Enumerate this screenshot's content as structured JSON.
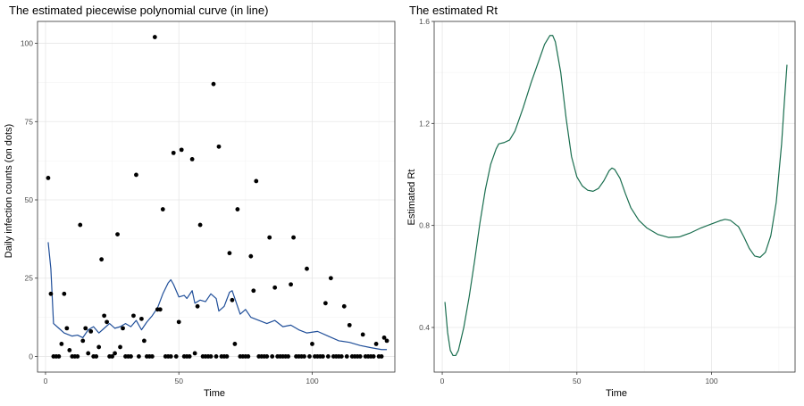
{
  "chart_data": [
    {
      "type": "scatter",
      "title": "The estimated piecewise polynomial curve (in line)",
      "xlabel": "Time",
      "ylabel": "Daily infection counts (on dots)",
      "xlim": [
        -3,
        131
      ],
      "ylim": [
        -5,
        107
      ],
      "xticks": [
        0,
        50,
        100
      ],
      "yticks": [
        0,
        25,
        50,
        75,
        100
      ],
      "grid": true,
      "points_color": "#000000",
      "line_color": "#1f4e99",
      "points": [
        [
          1,
          57
        ],
        [
          2,
          20
        ],
        [
          3,
          0
        ],
        [
          4,
          0
        ],
        [
          5,
          0
        ],
        [
          6,
          4
        ],
        [
          7,
          20
        ],
        [
          8,
          9
        ],
        [
          9,
          2
        ],
        [
          10,
          0
        ],
        [
          11,
          0
        ],
        [
          12,
          0
        ],
        [
          13,
          42
        ],
        [
          14,
          5
        ],
        [
          15,
          9
        ],
        [
          16,
          1
        ],
        [
          17,
          8
        ],
        [
          18,
          0
        ],
        [
          19,
          0
        ],
        [
          20,
          3
        ],
        [
          21,
          31
        ],
        [
          22,
          13
        ],
        [
          23,
          11
        ],
        [
          24,
          0
        ],
        [
          25,
          0
        ],
        [
          26,
          1
        ],
        [
          27,
          39
        ],
        [
          28,
          3
        ],
        [
          29,
          9
        ],
        [
          30,
          0
        ],
        [
          31,
          0
        ],
        [
          32,
          0
        ],
        [
          33,
          13
        ],
        [
          34,
          58
        ],
        [
          35,
          0
        ],
        [
          36,
          12
        ],
        [
          37,
          5
        ],
        [
          38,
          0
        ],
        [
          39,
          0
        ],
        [
          40,
          0
        ],
        [
          41,
          102
        ],
        [
          42,
          15
        ],
        [
          43,
          15
        ],
        [
          44,
          47
        ],
        [
          45,
          0
        ],
        [
          46,
          0
        ],
        [
          47,
          0
        ],
        [
          48,
          65
        ],
        [
          49,
          0
        ],
        [
          50,
          11
        ],
        [
          51,
          66
        ],
        [
          52,
          0
        ],
        [
          53,
          0
        ],
        [
          54,
          0
        ],
        [
          55,
          63
        ],
        [
          56,
          1
        ],
        [
          57,
          16
        ],
        [
          58,
          42
        ],
        [
          59,
          0
        ],
        [
          60,
          0
        ],
        [
          61,
          0
        ],
        [
          62,
          0
        ],
        [
          63,
          87
        ],
        [
          64,
          0
        ],
        [
          65,
          67
        ],
        [
          66,
          0
        ],
        [
          67,
          0
        ],
        [
          68,
          0
        ],
        [
          69,
          33
        ],
        [
          70,
          18
        ],
        [
          71,
          4
        ],
        [
          72,
          47
        ],
        [
          73,
          0
        ],
        [
          74,
          0
        ],
        [
          75,
          0
        ],
        [
          76,
          0
        ],
        [
          77,
          32
        ],
        [
          78,
          21
        ],
        [
          79,
          56
        ],
        [
          80,
          0
        ],
        [
          81,
          0
        ],
        [
          82,
          0
        ],
        [
          83,
          0
        ],
        [
          84,
          38
        ],
        [
          85,
          0
        ],
        [
          86,
          22
        ],
        [
          87,
          0
        ],
        [
          88,
          0
        ],
        [
          89,
          0
        ],
        [
          90,
          0
        ],
        [
          91,
          0
        ],
        [
          92,
          23
        ],
        [
          93,
          38
        ],
        [
          94,
          0
        ],
        [
          95,
          0
        ],
        [
          96,
          0
        ],
        [
          97,
          0
        ],
        [
          98,
          28
        ],
        [
          99,
          0
        ],
        [
          100,
          4
        ],
        [
          101,
          0
        ],
        [
          102,
          0
        ],
        [
          103,
          0
        ],
        [
          104,
          0
        ],
        [
          105,
          17
        ],
        [
          106,
          0
        ],
        [
          107,
          25
        ],
        [
          108,
          0
        ],
        [
          109,
          0
        ],
        [
          110,
          0
        ],
        [
          111,
          0
        ],
        [
          112,
          16
        ],
        [
          113,
          0
        ],
        [
          114,
          10
        ],
        [
          115,
          0
        ],
        [
          116,
          0
        ],
        [
          117,
          0
        ],
        [
          118,
          0
        ],
        [
          119,
          7
        ],
        [
          120,
          0
        ],
        [
          121,
          0
        ],
        [
          122,
          0
        ],
        [
          123,
          0
        ],
        [
          124,
          4
        ],
        [
          125,
          0
        ],
        [
          126,
          0
        ],
        [
          127,
          6
        ],
        [
          128,
          5
        ]
      ],
      "line": [
        [
          1,
          36.5
        ],
        [
          2,
          28
        ],
        [
          3,
          10.5
        ],
        [
          5,
          9
        ],
        [
          7,
          7.5
        ],
        [
          10,
          6.5
        ],
        [
          12,
          6.8
        ],
        [
          14,
          6
        ],
        [
          16,
          8.5
        ],
        [
          18,
          9.5
        ],
        [
          20,
          7.5
        ],
        [
          22,
          9
        ],
        [
          24,
          10.5
        ],
        [
          26,
          9
        ],
        [
          28,
          9.5
        ],
        [
          30,
          10.5
        ],
        [
          32,
          9.5
        ],
        [
          34,
          11.5
        ],
        [
          36,
          8.5
        ],
        [
          38,
          11
        ],
        [
          40,
          13
        ],
        [
          42,
          15.5
        ],
        [
          44,
          20
        ],
        [
          46,
          23.5
        ],
        [
          47,
          24.5
        ],
        [
          48,
          23
        ],
        [
          50,
          19
        ],
        [
          52,
          19.5
        ],
        [
          53,
          18.5
        ],
        [
          55,
          21
        ],
        [
          56,
          17
        ],
        [
          58,
          18
        ],
        [
          60,
          17.5
        ],
        [
          62,
          20
        ],
        [
          64,
          18.5
        ],
        [
          65,
          14.5
        ],
        [
          67,
          16
        ],
        [
          69,
          20.5
        ],
        [
          70,
          21
        ],
        [
          71,
          18.5
        ],
        [
          73,
          13.5
        ],
        [
          75,
          15
        ],
        [
          77,
          12.5
        ],
        [
          80,
          11.5
        ],
        [
          83,
          10.5
        ],
        [
          86,
          11.5
        ],
        [
          89,
          9.5
        ],
        [
          92,
          10
        ],
        [
          95,
          8.5
        ],
        [
          98,
          7.5
        ],
        [
          102,
          8
        ],
        [
          106,
          6.5
        ],
        [
          110,
          5
        ],
        [
          114,
          4.5
        ],
        [
          118,
          3.5
        ],
        [
          122,
          2.8
        ],
        [
          126,
          2.2
        ],
        [
          128,
          2.2
        ]
      ]
    },
    {
      "type": "line",
      "title": "The estimated Rt",
      "xlabel": "Time",
      "ylabel": "Estimated Rt",
      "xlim": [
        -3,
        131
      ],
      "ylim": [
        0.225,
        1.6
      ],
      "xticks": [
        0,
        50,
        100
      ],
      "yticks": [
        0.4,
        0.8,
        1.2,
        1.6
      ],
      "ytick_labels": [
        "0.4",
        "0.8",
        "1.2",
        "1.6"
      ],
      "grid": true,
      "line_color": "#1a6e4f",
      "line": [
        [
          1,
          0.5
        ],
        [
          2,
          0.38
        ],
        [
          3,
          0.31
        ],
        [
          4,
          0.29
        ],
        [
          5,
          0.29
        ],
        [
          6,
          0.31
        ],
        [
          8,
          0.4
        ],
        [
          10,
          0.52
        ],
        [
          12,
          0.66
        ],
        [
          14,
          0.81
        ],
        [
          16,
          0.94
        ],
        [
          18,
          1.04
        ],
        [
          20,
          1.1
        ],
        [
          21,
          1.12
        ],
        [
          23,
          1.125
        ],
        [
          25,
          1.135
        ],
        [
          27,
          1.17
        ],
        [
          30,
          1.26
        ],
        [
          33,
          1.36
        ],
        [
          36,
          1.45
        ],
        [
          38,
          1.51
        ],
        [
          40,
          1.545
        ],
        [
          41,
          1.545
        ],
        [
          42,
          1.52
        ],
        [
          44,
          1.4
        ],
        [
          46,
          1.22
        ],
        [
          48,
          1.07
        ],
        [
          50,
          0.99
        ],
        [
          52,
          0.955
        ],
        [
          54,
          0.938
        ],
        [
          56,
          0.934
        ],
        [
          58,
          0.945
        ],
        [
          60,
          0.975
        ],
        [
          62,
          1.015
        ],
        [
          63,
          1.025
        ],
        [
          64,
          1.02
        ],
        [
          66,
          0.985
        ],
        [
          68,
          0.925
        ],
        [
          70,
          0.87
        ],
        [
          73,
          0.82
        ],
        [
          76,
          0.79
        ],
        [
          80,
          0.765
        ],
        [
          84,
          0.753
        ],
        [
          88,
          0.755
        ],
        [
          92,
          0.77
        ],
        [
          96,
          0.79
        ],
        [
          100,
          0.806
        ],
        [
          103,
          0.818
        ],
        [
          105,
          0.824
        ],
        [
          107,
          0.82
        ],
        [
          110,
          0.795
        ],
        [
          112,
          0.755
        ],
        [
          114,
          0.71
        ],
        [
          116,
          0.68
        ],
        [
          118,
          0.675
        ],
        [
          120,
          0.695
        ],
        [
          122,
          0.76
        ],
        [
          124,
          0.89
        ],
        [
          126,
          1.12
        ],
        [
          127,
          1.28
        ],
        [
          128,
          1.43
        ]
      ]
    }
  ]
}
